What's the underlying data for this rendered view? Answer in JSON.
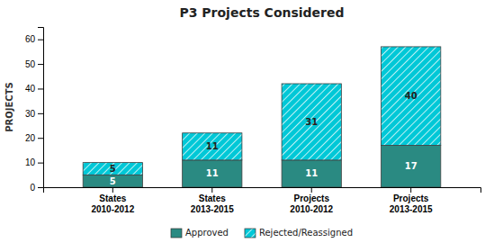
{
  "chart_data": {
    "type": "bar",
    "title": "P3 Projects Considered",
    "categories": [
      "States\n2010-2012",
      "States\n2013-2015",
      "Projects\n2010-2012",
      "Projects\n2013-2015"
    ],
    "series": [
      {
        "name": "Approved",
        "color": "#2a8a82",
        "values": [
          5,
          11,
          11,
          17
        ]
      },
      {
        "name": "Rejected/Reassigned",
        "color": "#00c8d7",
        "values": [
          5,
          11,
          31,
          40
        ]
      }
    ],
    "ylabel": "PROJECTS",
    "ylim": [
      0,
      65
    ],
    "yticks": [
      0,
      10,
      20,
      30,
      40,
      50,
      60
    ],
    "stacked": true,
    "data_labels": true,
    "grid": false,
    "legend": "bottom"
  }
}
